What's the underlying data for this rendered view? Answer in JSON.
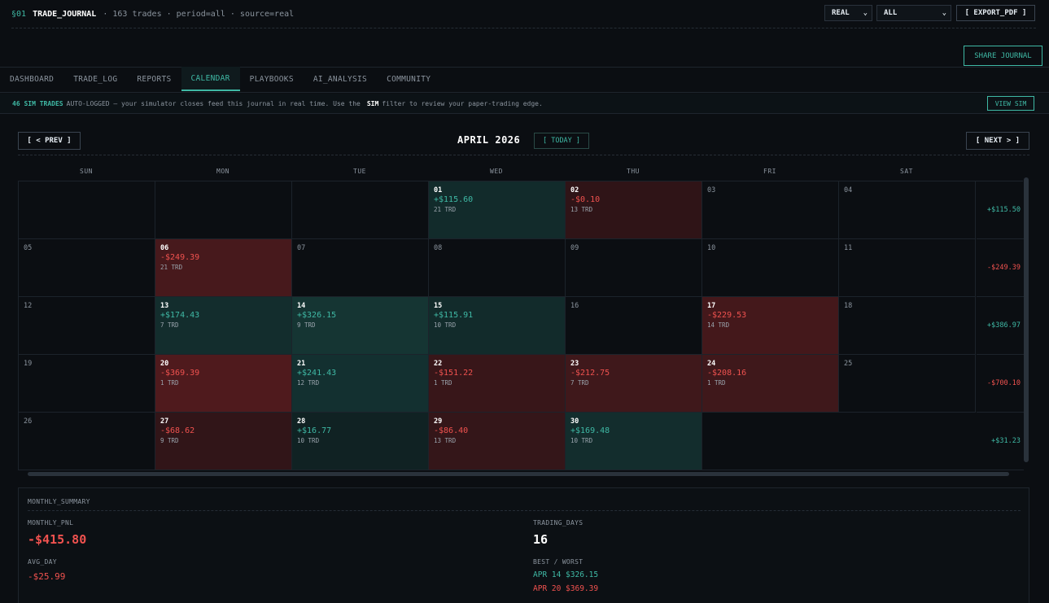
{
  "header": {
    "section": "§01",
    "title": "TRADE_JOURNAL",
    "meta": "· 163 trades · period=all · source=real",
    "source_select": "REAL",
    "period_select": "ALL",
    "export_label": "[ EXPORT_PDF ]",
    "share_label": "SHARE JOURNAL"
  },
  "nav": {
    "tabs": [
      {
        "label": "DASHBOARD"
      },
      {
        "label": "TRADE_LOG"
      },
      {
        "label": "REPORTS"
      },
      {
        "label": "CALENDAR"
      },
      {
        "label": "PLAYBOOKS"
      },
      {
        "label": "AI_ANALYSIS"
      },
      {
        "label": "COMMUNITY"
      }
    ],
    "active": "CALENDAR"
  },
  "banner": {
    "highlight": "46 SIM TRADES",
    "text1": "AUTO-LOGGED — your simulator closes feed this journal in real time. Use the",
    "emphasis": "SIM",
    "text2": "filter to review your paper-trading edge.",
    "button": "VIEW SIM"
  },
  "calendar": {
    "prev_label": "[ < PREV ]",
    "next_label": "[ NEXT > ]",
    "month_label": "APRIL 2026",
    "today_label": "[ TODAY ]",
    "weekdays": [
      "SUN",
      "MON",
      "TUE",
      "WED",
      "THU",
      "FRI",
      "SAT"
    ],
    "weeks": [
      {
        "days": [
          {
            "day": "",
            "pnl": "",
            "trades": "",
            "sign": "none"
          },
          {
            "day": "",
            "pnl": "",
            "trades": "",
            "sign": "none"
          },
          {
            "day": "",
            "pnl": "",
            "trades": "",
            "sign": "none"
          },
          {
            "day": "01",
            "pnl": "+$115.60",
            "trades": "21 TRD",
            "sign": "pos",
            "level": 0.45
          },
          {
            "day": "02",
            "pnl": "-$0.10",
            "trades": "13 TRD",
            "sign": "neg",
            "level": 0.25
          },
          {
            "day": "03",
            "pnl": "",
            "trades": "",
            "sign": "none"
          },
          {
            "day": "04",
            "pnl": "",
            "trades": "",
            "sign": "none"
          }
        ],
        "total": "+$115.50",
        "total_sign": "pos"
      },
      {
        "days": [
          {
            "day": "05",
            "pnl": "",
            "trades": "",
            "sign": "none"
          },
          {
            "day": "06",
            "pnl": "-$249.39",
            "trades": "21 TRD",
            "sign": "neg",
            "level": 0.7
          },
          {
            "day": "07",
            "pnl": "",
            "trades": "",
            "sign": "none"
          },
          {
            "day": "08",
            "pnl": "",
            "trades": "",
            "sign": "none"
          },
          {
            "day": "09",
            "pnl": "",
            "trades": "",
            "sign": "none"
          },
          {
            "day": "10",
            "pnl": "",
            "trades": "",
            "sign": "none"
          },
          {
            "day": "11",
            "pnl": "",
            "trades": "",
            "sign": "none"
          }
        ],
        "total": "-$249.39",
        "total_sign": "neg"
      },
      {
        "days": [
          {
            "day": "12",
            "pnl": "",
            "trades": "",
            "sign": "none"
          },
          {
            "day": "13",
            "pnl": "+$174.43",
            "trades": "7 TRD",
            "sign": "pos",
            "level": 0.55
          },
          {
            "day": "14",
            "pnl": "+$326.15",
            "trades": "9 TRD",
            "sign": "pos",
            "level": 0.8
          },
          {
            "day": "15",
            "pnl": "+$115.91",
            "trades": "10 TRD",
            "sign": "pos",
            "level": 0.45
          },
          {
            "day": "16",
            "pnl": "",
            "trades": "",
            "sign": "none"
          },
          {
            "day": "17",
            "pnl": "-$229.53",
            "trades": "14 TRD",
            "sign": "neg",
            "level": 0.65
          },
          {
            "day": "18",
            "pnl": "",
            "trades": "",
            "sign": "none"
          }
        ],
        "total": "+$386.97",
        "total_sign": "pos"
      },
      {
        "days": [
          {
            "day": "19",
            "pnl": "",
            "trades": "",
            "sign": "none"
          },
          {
            "day": "20",
            "pnl": "-$369.39",
            "trades": "1 TRD",
            "sign": "neg",
            "level": 0.85
          },
          {
            "day": "21",
            "pnl": "+$241.43",
            "trades": "12 TRD",
            "sign": "pos",
            "level": 0.65
          },
          {
            "day": "22",
            "pnl": "-$151.22",
            "trades": "1 TRD",
            "sign": "neg",
            "level": 0.45
          },
          {
            "day": "23",
            "pnl": "-$212.75",
            "trades": "7 TRD",
            "sign": "neg",
            "level": 0.55
          },
          {
            "day": "24",
            "pnl": "-$208.16",
            "trades": "1 TRD",
            "sign": "neg",
            "level": 0.55
          },
          {
            "day": "25",
            "pnl": "",
            "trades": "",
            "sign": "none"
          }
        ],
        "total": "-$700.10",
        "total_sign": "neg"
      },
      {
        "days": [
          {
            "day": "26",
            "pnl": "",
            "trades": "",
            "sign": "none"
          },
          {
            "day": "27",
            "pnl": "-$68.62",
            "trades": "9 TRD",
            "sign": "neg",
            "level": 0.3
          },
          {
            "day": "28",
            "pnl": "+$16.77",
            "trades": "10 TRD",
            "sign": "pos",
            "level": 0.2
          },
          {
            "day": "29",
            "pnl": "-$86.40",
            "trades": "13 TRD",
            "sign": "neg",
            "level": 0.35
          },
          {
            "day": "30",
            "pnl": "+$169.48",
            "trades": "10 TRD",
            "sign": "pos",
            "level": 0.55
          },
          {
            "day": "",
            "pnl": "",
            "trades": "",
            "sign": "blank"
          },
          {
            "day": "",
            "pnl": "",
            "trades": "",
            "sign": "blank"
          }
        ],
        "total": "+$31.23",
        "total_sign": "pos"
      }
    ]
  },
  "summary": {
    "title": "MONTHLY_SUMMARY",
    "monthly_pnl_label": "MONTHLY_PNL",
    "monthly_pnl": "-$415.80",
    "avg_day_label": "AVG_DAY",
    "avg_day": "-$25.99",
    "trading_days_label": "TRADING_DAYS",
    "trading_days": "16",
    "best_worst_label": "BEST / WORST",
    "best": "APR 14 $326.15",
    "worst": "APR 20 $369.39"
  },
  "colors": {
    "accent": "#3fb9a5",
    "negative": "#f0524f",
    "background": "#0b0e12"
  }
}
